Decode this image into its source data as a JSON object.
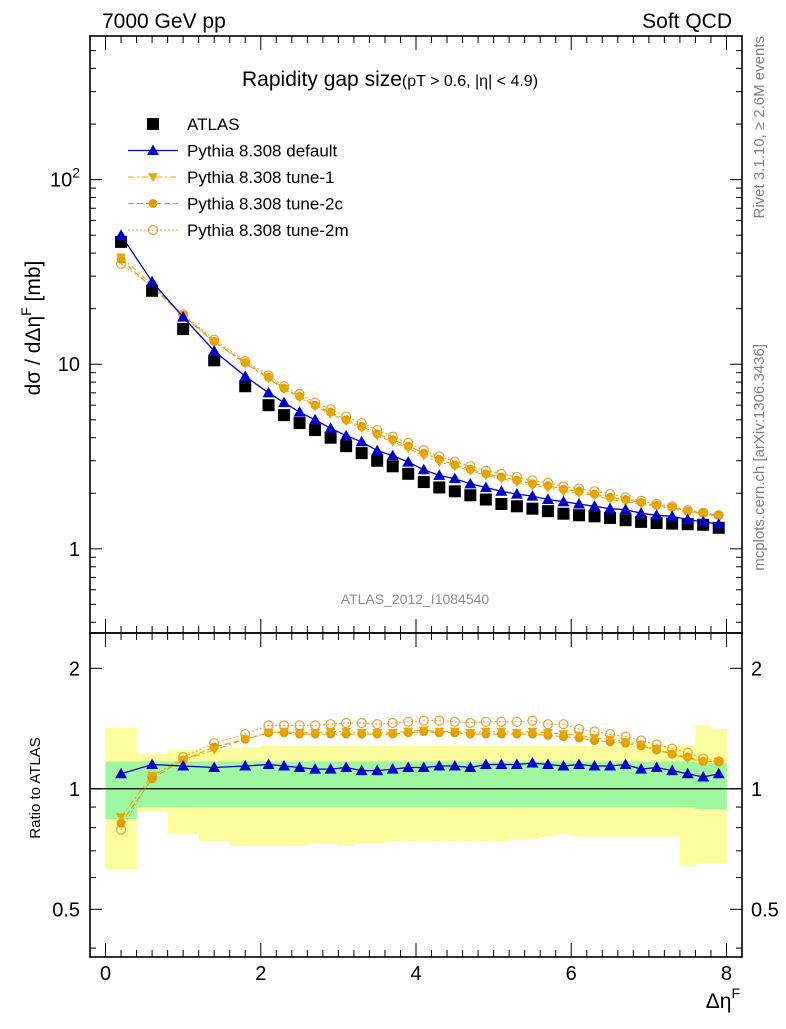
{
  "header": {
    "left": "7000 GeV pp",
    "right": "Soft QCD"
  },
  "side_labels": {
    "rivet": "Rivet 3.1.10, ≥ 2.6M events",
    "mcplots": "mcplots.cern.ch [arXiv:1306.3436]"
  },
  "chart_data": [
    {
      "type": "scatter",
      "panel": "main",
      "title_main": "Rapidity gap size",
      "title_cut_pre": "(pT > 0.6, |",
      "title_cut_eta": "η",
      "title_cut_post": "| < 4.9)",
      "ylabel_parts": [
        "dσ / dΔη",
        "F",
        " [mb]"
      ],
      "xlabel_parts": [
        "Δη",
        "F"
      ],
      "analysis_tag": "ATLAS_2012_I1084540",
      "yscale": "log",
      "ylim": [
        0.35,
        600
      ],
      "xlim": [
        -0.2,
        8.2
      ],
      "yticks": [
        {
          "v": 1,
          "label": "1"
        },
        {
          "v": 10,
          "label": "10"
        }
      ],
      "ytick_100": {
        "v": 100,
        "base": "10",
        "exp": "2"
      },
      "xticks": [
        {
          "v": 0,
          "label": "0"
        },
        {
          "v": 2,
          "label": "2"
        },
        {
          "v": 4,
          "label": "4"
        },
        {
          "v": 6,
          "label": "6"
        },
        {
          "v": 8,
          "label": "8"
        }
      ],
      "legend_position": "top-left",
      "x": [
        0.2,
        0.6,
        1.0,
        1.4,
        1.8,
        2.1,
        2.3,
        2.5,
        2.7,
        2.9,
        3.1,
        3.3,
        3.5,
        3.7,
        3.9,
        4.1,
        4.3,
        4.5,
        4.7,
        4.9,
        5.1,
        5.3,
        5.5,
        5.7,
        5.9,
        6.1,
        6.3,
        6.5,
        6.7,
        6.9,
        7.1,
        7.3,
        7.5,
        7.7,
        7.9
      ],
      "series": [
        {
          "name": "ATLAS",
          "marker": "square",
          "color": "#000000",
          "values": [
            46,
            25,
            15.5,
            10.5,
            7.6,
            6.0,
            5.3,
            4.8,
            4.4,
            4.0,
            3.6,
            3.3,
            3.0,
            2.8,
            2.55,
            2.3,
            2.15,
            2.05,
            1.95,
            1.85,
            1.75,
            1.7,
            1.65,
            1.6,
            1.55,
            1.52,
            1.5,
            1.47,
            1.43,
            1.4,
            1.38,
            1.37,
            1.36,
            1.35,
            1.3
          ]
        },
        {
          "name": "Pythia 8.308 default",
          "marker": "triangle-up",
          "color": "#0000cc",
          "line": "solid",
          "values": [
            50,
            28,
            18,
            11.8,
            8.6,
            7.0,
            6.2,
            5.5,
            5.0,
            4.5,
            4.1,
            3.8,
            3.4,
            3.2,
            2.95,
            2.68,
            2.5,
            2.4,
            2.25,
            2.15,
            2.05,
            1.98,
            1.93,
            1.85,
            1.8,
            1.75,
            1.7,
            1.65,
            1.63,
            1.56,
            1.52,
            1.5,
            1.44,
            1.4,
            1.36
          ]
        },
        {
          "name": "Pythia 8.308 tune-1",
          "marker": "triangle-down",
          "color": "#e8a800",
          "line": "dashdot",
          "values": [
            38,
            27,
            18.2,
            13.2,
            10.1,
            8.4,
            7.3,
            6.6,
            5.9,
            5.4,
            4.9,
            4.5,
            4.1,
            3.8,
            3.5,
            3.2,
            2.95,
            2.8,
            2.65,
            2.5,
            2.4,
            2.3,
            2.2,
            2.15,
            2.05,
            2.0,
            1.95,
            1.85,
            1.8,
            1.75,
            1.7,
            1.65,
            1.58,
            1.55,
            1.5
          ]
        },
        {
          "name": "Pythia 8.308 tune-2c",
          "marker": "circle",
          "color": "#e09b00",
          "line": "dashed",
          "values": [
            37,
            26,
            18.4,
            13.3,
            10.2,
            8.5,
            7.4,
            6.7,
            6.0,
            5.5,
            5.0,
            4.6,
            4.2,
            3.9,
            3.6,
            3.3,
            3.05,
            2.85,
            2.7,
            2.55,
            2.45,
            2.35,
            2.25,
            2.2,
            2.1,
            2.05,
            1.98,
            1.9,
            1.85,
            1.78,
            1.72,
            1.68,
            1.6,
            1.56,
            1.52
          ]
        },
        {
          "name": "Pythia 8.308 tune-2m",
          "marker": "circle-open",
          "color": "#e8a030",
          "line": "dotted",
          "values": [
            35,
            26.5,
            18.6,
            13.6,
            10.4,
            8.7,
            7.6,
            6.9,
            6.2,
            5.7,
            5.2,
            4.8,
            4.4,
            4.05,
            3.75,
            3.42,
            3.17,
            2.97,
            2.8,
            2.65,
            2.55,
            2.45,
            2.35,
            2.28,
            2.18,
            2.12,
            2.05,
            1.98,
            1.9,
            1.82,
            1.75,
            1.7,
            1.62,
            1.57,
            1.52
          ]
        }
      ]
    },
    {
      "type": "scatter",
      "panel": "ratio",
      "ylabel": "Ratio to ATLAS",
      "yscale": "log",
      "ylim": [
        0.38,
        2.45
      ],
      "xlim": [
        -0.2,
        8.2
      ],
      "yticks": [
        {
          "v": 0.5,
          "label": "0.5"
        },
        {
          "v": 1,
          "label": "1"
        },
        {
          "v": 2,
          "label": "2"
        }
      ],
      "reference_line": 1,
      "bands": {
        "green_color": "#9ff79f",
        "yellow_color": "#fdfd9d",
        "bin_edges": [
          0.0,
          0.4,
          0.8,
          1.2,
          1.6,
          2.0,
          2.2,
          2.4,
          2.6,
          2.8,
          3.0,
          3.2,
          3.4,
          3.6,
          3.8,
          4.0,
          4.2,
          4.4,
          4.6,
          4.8,
          5.0,
          5.2,
          5.4,
          5.6,
          5.8,
          6.0,
          6.2,
          6.4,
          6.6,
          6.8,
          7.0,
          7.2,
          7.4,
          7.6,
          7.8,
          8.0
        ],
        "green_lo": [
          0.84,
          0.9,
          0.9,
          0.9,
          0.9,
          0.9,
          0.9,
          0.9,
          0.9,
          0.9,
          0.9,
          0.9,
          0.9,
          0.9,
          0.9,
          0.9,
          0.9,
          0.9,
          0.9,
          0.9,
          0.9,
          0.9,
          0.9,
          0.9,
          0.9,
          0.9,
          0.9,
          0.9,
          0.9,
          0.9,
          0.9,
          0.9,
          0.9,
          0.89,
          0.89
        ],
        "green_hi": [
          1.17,
          1.17,
          1.17,
          1.17,
          1.17,
          1.17,
          1.17,
          1.17,
          1.17,
          1.17,
          1.17,
          1.17,
          1.17,
          1.17,
          1.17,
          1.17,
          1.17,
          1.17,
          1.17,
          1.17,
          1.17,
          1.17,
          1.17,
          1.17,
          1.17,
          1.17,
          1.17,
          1.17,
          1.17,
          1.17,
          1.17,
          1.17,
          1.17,
          1.16,
          1.16
        ],
        "yellow_lo": [
          0.63,
          0.88,
          0.77,
          0.74,
          0.72,
          0.72,
          0.72,
          0.72,
          0.73,
          0.73,
          0.72,
          0.73,
          0.73,
          0.74,
          0.74,
          0.74,
          0.74,
          0.74,
          0.74,
          0.74,
          0.74,
          0.75,
          0.75,
          0.76,
          0.77,
          0.76,
          0.76,
          0.76,
          0.76,
          0.76,
          0.76,
          0.76,
          0.64,
          0.65,
          0.65
        ],
        "yellow_hi": [
          1.42,
          1.22,
          1.25,
          1.26,
          1.27,
          1.28,
          1.28,
          1.28,
          1.28,
          1.28,
          1.28,
          1.28,
          1.28,
          1.28,
          1.28,
          1.28,
          1.28,
          1.28,
          1.28,
          1.28,
          1.28,
          1.28,
          1.28,
          1.28,
          1.28,
          1.28,
          1.28,
          1.28,
          1.28,
          1.28,
          1.28,
          1.28,
          1.28,
          1.44,
          1.41
        ]
      },
      "x": [
        0.2,
        0.6,
        1.0,
        1.4,
        1.8,
        2.1,
        2.3,
        2.5,
        2.7,
        2.9,
        3.1,
        3.3,
        3.5,
        3.7,
        3.9,
        4.1,
        4.3,
        4.5,
        4.7,
        4.9,
        5.1,
        5.3,
        5.5,
        5.7,
        5.9,
        6.1,
        6.3,
        6.5,
        6.7,
        6.9,
        7.1,
        7.3,
        7.5,
        7.7,
        7.9
      ],
      "series": [
        {
          "name": "Pythia 8.308 default",
          "marker": "triangle-up",
          "color": "#0000cc",
          "line": "solid",
          "values": [
            1.09,
            1.15,
            1.14,
            1.13,
            1.14,
            1.15,
            1.14,
            1.13,
            1.12,
            1.12,
            1.13,
            1.11,
            1.11,
            1.12,
            1.13,
            1.13,
            1.14,
            1.14,
            1.13,
            1.15,
            1.15,
            1.15,
            1.16,
            1.15,
            1.14,
            1.15,
            1.14,
            1.14,
            1.15,
            1.12,
            1.13,
            1.11,
            1.09,
            1.07,
            1.09
          ]
        },
        {
          "name": "Pythia 8.308 tune-1",
          "marker": "triangle-down",
          "color": "#e8a800",
          "line": "dashdot",
          "values": [
            0.85,
            1.08,
            1.18,
            1.25,
            1.33,
            1.38,
            1.39,
            1.38,
            1.38,
            1.39,
            1.39,
            1.38,
            1.38,
            1.38,
            1.39,
            1.4,
            1.39,
            1.39,
            1.38,
            1.39,
            1.39,
            1.38,
            1.39,
            1.38,
            1.37,
            1.36,
            1.34,
            1.33,
            1.31,
            1.29,
            1.26,
            1.22,
            1.19,
            1.17,
            1.17
          ]
        },
        {
          "name": "Pythia 8.308 tune-2c",
          "marker": "circle",
          "color": "#e09b00",
          "line": "dashed",
          "values": [
            0.82,
            1.06,
            1.18,
            1.27,
            1.33,
            1.38,
            1.38,
            1.37,
            1.37,
            1.37,
            1.37,
            1.37,
            1.37,
            1.37,
            1.38,
            1.39,
            1.38,
            1.38,
            1.37,
            1.37,
            1.37,
            1.37,
            1.37,
            1.36,
            1.35,
            1.34,
            1.32,
            1.31,
            1.3,
            1.28,
            1.25,
            1.22,
            1.2,
            1.17,
            1.17
          ]
        },
        {
          "name": "Pythia 8.308 tune-2m",
          "marker": "circle-open",
          "color": "#e8a030",
          "line": "dotted",
          "values": [
            0.79,
            1.07,
            1.2,
            1.3,
            1.37,
            1.44,
            1.44,
            1.44,
            1.44,
            1.45,
            1.46,
            1.46,
            1.45,
            1.46,
            1.47,
            1.48,
            1.48,
            1.47,
            1.46,
            1.47,
            1.47,
            1.47,
            1.48,
            1.45,
            1.45,
            1.41,
            1.39,
            1.37,
            1.35,
            1.32,
            1.29,
            1.26,
            1.23,
            1.19,
            1.17
          ]
        }
      ]
    }
  ]
}
